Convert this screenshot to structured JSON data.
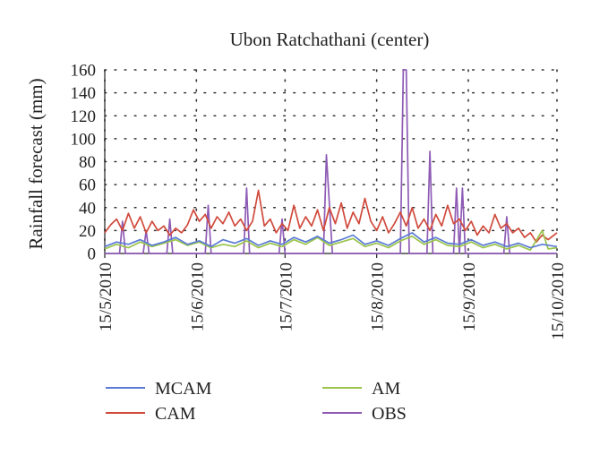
{
  "chart_data": {
    "type": "line",
    "title": "Ubon Ratchathani (center)",
    "xlabel": "",
    "ylabel": "Rainfall forecast (mm)",
    "ylim": [
      0,
      160
    ],
    "yticks": [
      0,
      20,
      40,
      60,
      80,
      100,
      120,
      140,
      160
    ],
    "xlim": [
      "2010-05-15",
      "2010-10-15"
    ],
    "xticks": [
      "15/5/2010",
      "15/6/2010",
      "15/7/2010",
      "15/8/2010",
      "15/9/2010",
      "15/10/2010"
    ],
    "grid": "dotted-major",
    "legend_position": "bottom",
    "series": [
      {
        "name": "MCAM",
        "color": "#5b7bd5",
        "points": [
          [
            "2010-05-15",
            6
          ],
          [
            "2010-05-19",
            10
          ],
          [
            "2010-05-23",
            8
          ],
          [
            "2010-05-27",
            12
          ],
          [
            "2010-05-31",
            7
          ],
          [
            "2010-06-04",
            10
          ],
          [
            "2010-06-08",
            14
          ],
          [
            "2010-06-12",
            8
          ],
          [
            "2010-06-16",
            11
          ],
          [
            "2010-06-20",
            6
          ],
          [
            "2010-06-24",
            12
          ],
          [
            "2010-06-28",
            9
          ],
          [
            "2010-07-02",
            13
          ],
          [
            "2010-07-06",
            7
          ],
          [
            "2010-07-10",
            11
          ],
          [
            "2010-07-14",
            8
          ],
          [
            "2010-07-18",
            14
          ],
          [
            "2010-07-22",
            10
          ],
          [
            "2010-07-26",
            15
          ],
          [
            "2010-07-30",
            9
          ],
          [
            "2010-08-03",
            12
          ],
          [
            "2010-08-07",
            16
          ],
          [
            "2010-08-11",
            8
          ],
          [
            "2010-08-15",
            11
          ],
          [
            "2010-08-19",
            7
          ],
          [
            "2010-08-23",
            13
          ],
          [
            "2010-08-27",
            18
          ],
          [
            "2010-08-31",
            10
          ],
          [
            "2010-09-04",
            14
          ],
          [
            "2010-09-08",
            9
          ],
          [
            "2010-09-12",
            8
          ],
          [
            "2010-09-16",
            12
          ],
          [
            "2010-09-20",
            7
          ],
          [
            "2010-09-24",
            10
          ],
          [
            "2010-09-28",
            6
          ],
          [
            "2010-10-02",
            9
          ],
          [
            "2010-10-06",
            5
          ],
          [
            "2010-10-10",
            8
          ],
          [
            "2010-10-15",
            6
          ]
        ]
      },
      {
        "name": "CAM",
        "color": "#d04a3c",
        "points": [
          [
            "2010-05-15",
            18
          ],
          [
            "2010-05-17",
            25
          ],
          [
            "2010-05-19",
            30
          ],
          [
            "2010-05-21",
            20
          ],
          [
            "2010-05-23",
            35
          ],
          [
            "2010-05-25",
            22
          ],
          [
            "2010-05-27",
            32
          ],
          [
            "2010-05-29",
            18
          ],
          [
            "2010-05-31",
            28
          ],
          [
            "2010-06-02",
            20
          ],
          [
            "2010-06-04",
            24
          ],
          [
            "2010-06-06",
            16
          ],
          [
            "2010-06-08",
            22
          ],
          [
            "2010-06-10",
            18
          ],
          [
            "2010-06-12",
            25
          ],
          [
            "2010-06-14",
            38
          ],
          [
            "2010-06-16",
            28
          ],
          [
            "2010-06-18",
            34
          ],
          [
            "2010-06-20",
            22
          ],
          [
            "2010-06-22",
            32
          ],
          [
            "2010-06-24",
            26
          ],
          [
            "2010-06-26",
            36
          ],
          [
            "2010-06-28",
            24
          ],
          [
            "2010-06-30",
            30
          ],
          [
            "2010-07-02",
            20
          ],
          [
            "2010-07-04",
            28
          ],
          [
            "2010-07-06",
            55
          ],
          [
            "2010-07-08",
            24
          ],
          [
            "2010-07-10",
            30
          ],
          [
            "2010-07-12",
            18
          ],
          [
            "2010-07-14",
            26
          ],
          [
            "2010-07-16",
            20
          ],
          [
            "2010-07-18",
            42
          ],
          [
            "2010-07-20",
            22
          ],
          [
            "2010-07-22",
            32
          ],
          [
            "2010-07-24",
            24
          ],
          [
            "2010-07-26",
            38
          ],
          [
            "2010-07-28",
            20
          ],
          [
            "2010-07-30",
            40
          ],
          [
            "2010-08-01",
            26
          ],
          [
            "2010-08-03",
            44
          ],
          [
            "2010-08-05",
            22
          ],
          [
            "2010-08-07",
            36
          ],
          [
            "2010-08-09",
            26
          ],
          [
            "2010-08-11",
            48
          ],
          [
            "2010-08-13",
            28
          ],
          [
            "2010-08-15",
            20
          ],
          [
            "2010-08-17",
            32
          ],
          [
            "2010-08-19",
            18
          ],
          [
            "2010-08-21",
            26
          ],
          [
            "2010-08-23",
            36
          ],
          [
            "2010-08-25",
            24
          ],
          [
            "2010-08-27",
            40
          ],
          [
            "2010-08-29",
            22
          ],
          [
            "2010-08-31",
            30
          ],
          [
            "2010-09-02",
            20
          ],
          [
            "2010-09-04",
            34
          ],
          [
            "2010-09-06",
            24
          ],
          [
            "2010-09-08",
            42
          ],
          [
            "2010-09-10",
            26
          ],
          [
            "2010-09-12",
            30
          ],
          [
            "2010-09-14",
            20
          ],
          [
            "2010-09-16",
            28
          ],
          [
            "2010-09-18",
            16
          ],
          [
            "2010-09-20",
            24
          ],
          [
            "2010-09-22",
            18
          ],
          [
            "2010-09-24",
            34
          ],
          [
            "2010-09-26",
            22
          ],
          [
            "2010-09-28",
            26
          ],
          [
            "2010-09-30",
            18
          ],
          [
            "2010-10-02",
            22
          ],
          [
            "2010-10-04",
            14
          ],
          [
            "2010-10-06",
            18
          ],
          [
            "2010-10-08",
            10
          ],
          [
            "2010-10-10",
            16
          ],
          [
            "2010-10-12",
            12
          ],
          [
            "2010-10-15",
            18
          ]
        ]
      },
      {
        "name": "AM",
        "color": "#9ac44a",
        "points": [
          [
            "2010-05-15",
            4
          ],
          [
            "2010-05-19",
            8
          ],
          [
            "2010-05-23",
            5
          ],
          [
            "2010-05-27",
            10
          ],
          [
            "2010-05-31",
            6
          ],
          [
            "2010-06-04",
            9
          ],
          [
            "2010-06-08",
            12
          ],
          [
            "2010-06-12",
            7
          ],
          [
            "2010-06-16",
            10
          ],
          [
            "2010-06-20",
            5
          ],
          [
            "2010-06-24",
            8
          ],
          [
            "2010-06-28",
            6
          ],
          [
            "2010-07-02",
            11
          ],
          [
            "2010-07-06",
            5
          ],
          [
            "2010-07-10",
            9
          ],
          [
            "2010-07-14",
            6
          ],
          [
            "2010-07-18",
            12
          ],
          [
            "2010-07-22",
            8
          ],
          [
            "2010-07-26",
            14
          ],
          [
            "2010-07-30",
            7
          ],
          [
            "2010-08-03",
            10
          ],
          [
            "2010-08-07",
            13
          ],
          [
            "2010-08-11",
            6
          ],
          [
            "2010-08-15",
            9
          ],
          [
            "2010-08-19",
            5
          ],
          [
            "2010-08-23",
            11
          ],
          [
            "2010-08-27",
            15
          ],
          [
            "2010-08-31",
            8
          ],
          [
            "2010-09-04",
            12
          ],
          [
            "2010-09-08",
            7
          ],
          [
            "2010-09-12",
            6
          ],
          [
            "2010-09-16",
            10
          ],
          [
            "2010-09-20",
            5
          ],
          [
            "2010-09-24",
            8
          ],
          [
            "2010-09-28",
            4
          ],
          [
            "2010-10-02",
            7
          ],
          [
            "2010-10-06",
            3
          ],
          [
            "2010-10-10",
            20
          ],
          [
            "2010-10-12",
            4
          ],
          [
            "2010-10-15",
            5
          ]
        ]
      },
      {
        "name": "OBS",
        "color": "#8e5bb5",
        "points": [
          [
            "2010-05-15",
            0
          ],
          [
            "2010-05-20",
            0
          ],
          [
            "2010-05-21",
            28
          ],
          [
            "2010-05-22",
            0
          ],
          [
            "2010-05-28",
            0
          ],
          [
            "2010-05-29",
            20
          ],
          [
            "2010-05-30",
            0
          ],
          [
            "2010-06-05",
            0
          ],
          [
            "2010-06-06",
            30
          ],
          [
            "2010-06-07",
            0
          ],
          [
            "2010-06-18",
            0
          ],
          [
            "2010-06-19",
            42
          ],
          [
            "2010-06-20",
            0
          ],
          [
            "2010-07-01",
            0
          ],
          [
            "2010-07-02",
            57
          ],
          [
            "2010-07-03",
            0
          ],
          [
            "2010-07-13",
            0
          ],
          [
            "2010-07-14",
            30
          ],
          [
            "2010-07-15",
            0
          ],
          [
            "2010-07-28",
            0
          ],
          [
            "2010-07-29",
            86
          ],
          [
            "2010-07-31",
            0
          ],
          [
            "2010-08-23",
            0
          ],
          [
            "2010-08-24",
            160
          ],
          [
            "2010-08-25",
            160
          ],
          [
            "2010-08-26",
            0
          ],
          [
            "2010-09-01",
            0
          ],
          [
            "2010-09-02",
            89
          ],
          [
            "2010-09-03",
            0
          ],
          [
            "2010-09-10",
            0
          ],
          [
            "2010-09-11",
            57
          ],
          [
            "2010-09-12",
            0
          ],
          [
            "2010-09-13",
            57
          ],
          [
            "2010-09-14",
            0
          ],
          [
            "2010-09-27",
            0
          ],
          [
            "2010-09-28",
            32
          ],
          [
            "2010-09-29",
            0
          ],
          [
            "2010-10-15",
            0
          ]
        ]
      }
    ]
  }
}
